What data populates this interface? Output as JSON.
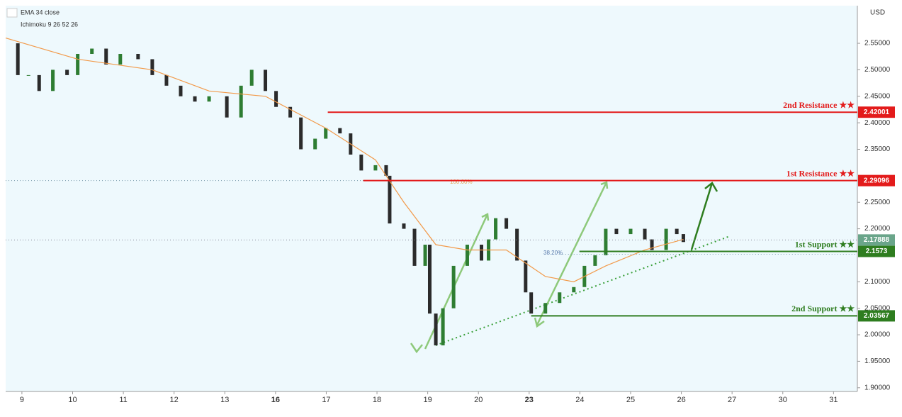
{
  "chart_data": {
    "type": "candlestick",
    "indicators": [
      "EMA 34 close",
      "Ichimoku 9 26 52 26"
    ],
    "currency": "USD",
    "xlim": [
      -0.32,
      16.47
    ],
    "ylim": [
      1.893,
      2.621
    ],
    "xticks": [
      {
        "value": 0,
        "label": "9"
      },
      {
        "value": 1,
        "label": "10"
      },
      {
        "value": 2,
        "label": "11"
      },
      {
        "value": 3,
        "label": "12"
      },
      {
        "value": 4,
        "label": "13"
      },
      {
        "value": 5,
        "label": "16"
      },
      {
        "value": 6,
        "label": "17"
      },
      {
        "value": 7,
        "label": "18"
      },
      {
        "value": 8,
        "label": "19"
      },
      {
        "value": 9,
        "label": "20"
      },
      {
        "value": 10,
        "label": "23"
      },
      {
        "value": 11,
        "label": "24"
      },
      {
        "value": 12,
        "label": "25"
      },
      {
        "value": 13,
        "label": "26"
      },
      {
        "value": 14,
        "label": "27"
      },
      {
        "value": 15,
        "label": "30"
      },
      {
        "value": 16,
        "label": "31"
      }
    ],
    "yticks": [
      {
        "value": 2.55,
        "label": "2.55000"
      },
      {
        "value": 2.5,
        "label": "2.50000"
      },
      {
        "value": 2.45,
        "label": "2.45000"
      },
      {
        "value": 2.4,
        "label": "2.40000"
      },
      {
        "value": 2.35,
        "label": "2.35000"
      },
      {
        "value": 2.25,
        "label": "2.25000"
      },
      {
        "value": 2.2,
        "label": "2.20000"
      },
      {
        "value": 2.1,
        "label": "2.10000"
      },
      {
        "value": 2.05,
        "label": "2.05000"
      },
      {
        "value": 2.0,
        "label": "2.00000"
      },
      {
        "value": 1.95,
        "label": "1.95000"
      },
      {
        "value": 1.9,
        "label": "1.90000"
      }
    ],
    "series": [
      {
        "name": "Close",
        "color": "#2e7d32",
        "x": [
          -0.32,
          -0.08,
          0.13,
          0.34,
          0.61,
          0.89,
          1.1,
          1.38,
          1.66,
          1.94,
          2.29,
          2.57,
          2.85,
          3.13,
          3.41,
          3.69,
          4.04,
          4.32,
          4.53,
          4.8,
          5.01,
          5.29,
          5.5,
          5.78,
          5.99,
          6.27,
          6.48,
          6.69,
          6.97,
          7.18,
          7.25,
          7.53,
          7.74,
          7.95,
          8.04,
          8.16,
          8.3,
          8.51,
          8.78,
          9.06,
          9.2,
          9.34,
          9.55,
          9.76,
          9.93,
          10.04,
          10.32,
          10.6,
          10.88,
          11.09,
          11.3,
          11.51,
          11.72,
          12.0,
          12.28,
          12.42,
          12.7,
          12.91,
          13.04
        ],
        "values": [
          2.55,
          2.49,
          2.49,
          2.46,
          2.5,
          2.49,
          2.53,
          2.54,
          2.51,
          2.53,
          2.52,
          2.49,
          2.47,
          2.45,
          2.44,
          2.45,
          2.41,
          2.47,
          2.5,
          2.46,
          2.43,
          2.41,
          2.35,
          2.37,
          2.39,
          2.38,
          2.34,
          2.31,
          2.32,
          2.3,
          2.21,
          2.2,
          2.13,
          2.17,
          2.04,
          1.98,
          2.05,
          2.13,
          2.17,
          2.14,
          2.18,
          2.22,
          2.2,
          2.14,
          2.08,
          2.04,
          2.06,
          2.08,
          2.09,
          2.13,
          2.15,
          2.2,
          2.19,
          2.2,
          2.18,
          2.16,
          2.2,
          2.19,
          2.175
        ]
      },
      {
        "name": "EMA 34 close",
        "color": "#f29a4a",
        "x": [
          -0.32,
          1.1,
          2.57,
          3.69,
          4.8,
          5.99,
          6.97,
          7.53,
          8.16,
          8.78,
          9.55,
          10.32,
          10.88,
          11.51,
          12.28,
          13.04
        ],
        "values": [
          2.56,
          2.52,
          2.5,
          2.46,
          2.45,
          2.39,
          2.33,
          2.25,
          2.17,
          2.16,
          2.16,
          2.11,
          2.1,
          2.13,
          2.16,
          2.18
        ]
      }
    ],
    "levels": [
      {
        "name": "2nd Resistance ★★",
        "value": 2.42001,
        "start": 6.03,
        "color": "#e31b1b"
      },
      {
        "name": "1st Resistance ★★",
        "value": 2.29096,
        "start": 6.73,
        "color": "#e31b1b"
      },
      {
        "name": "1st Support ★★",
        "value": 2.1573,
        "start": 10.99,
        "color": "#2e7d1f"
      },
      {
        "name": "2nd Support ★★",
        "value": 2.03567,
        "start": 10.04,
        "color": "#2e7d1f"
      }
    ],
    "last_price": 2.17888,
    "fib_labels": [
      "100.00%",
      "38.20%"
    ]
  }
}
